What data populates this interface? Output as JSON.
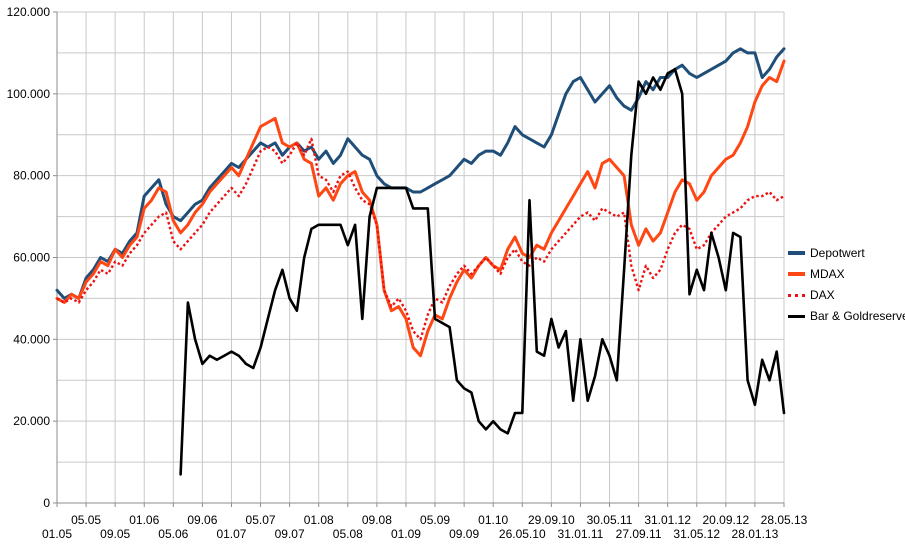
{
  "chart_data": {
    "type": "line",
    "title": "",
    "xlabel": "",
    "ylabel": "",
    "grid": true,
    "legend_position": "right",
    "y_axis": {
      "min": 0,
      "max": 120000,
      "grid_step": 10000,
      "label_step": 20000,
      "tick_labels": [
        "0",
        "20.000",
        "40.000",
        "60.000",
        "80.000",
        "100.000",
        "120.000"
      ]
    },
    "x_axis": {
      "tick_labels": [
        "01.05",
        "05.05",
        "09.05",
        "01.06",
        "05.06",
        "09.06",
        "01.07",
        "05.07",
        "09.07",
        "01.08",
        "05.08",
        "09.08",
        "01.09",
        "05.09",
        "09.09",
        "01.10",
        "26.05.10",
        "29.09.10",
        "31.01.11",
        "30.05.11",
        "27.09.11",
        "31.01.12",
        "31.05.12",
        "20.09.12",
        "28.01.13",
        "28.05.13"
      ],
      "months_per_tick": 4,
      "staggered_rows": true
    },
    "series": [
      {
        "name": "Depotwert",
        "color": "#1F4E79",
        "style": "solid",
        "width": 3,
        "values": [
          52000,
          50000,
          51000,
          50000,
          55000,
          57000,
          60000,
          59000,
          62000,
          61000,
          64000,
          66000,
          75000,
          77000,
          79000,
          73000,
          70000,
          69000,
          71000,
          73000,
          74000,
          77000,
          79000,
          81000,
          83000,
          82000,
          84000,
          86000,
          88000,
          87000,
          88000,
          85000,
          87000,
          88000,
          86000,
          87000,
          84000,
          86000,
          83000,
          85000,
          89000,
          87000,
          85000,
          84000,
          80000,
          78000,
          77000,
          77000,
          77000,
          76000,
          76000,
          77000,
          78000,
          79000,
          80000,
          82000,
          84000,
          83000,
          85000,
          86000,
          86000,
          85000,
          88000,
          92000,
          90000,
          89000,
          88000,
          87000,
          90000,
          95000,
          100000,
          103000,
          104000,
          101000,
          98000,
          100000,
          102000,
          99000,
          97000,
          96000,
          99000,
          103000,
          101000,
          104000,
          104000,
          106000,
          107000,
          105000,
          104000,
          105000,
          106000,
          107000,
          108000,
          110000,
          111000,
          110000,
          110000,
          104000,
          106000,
          109000,
          111000
        ]
      },
      {
        "name": "MDAX",
        "color": "#FF4713",
        "style": "solid",
        "width": 3,
        "values": [
          50000,
          49000,
          51000,
          50000,
          54000,
          56000,
          59000,
          58000,
          62000,
          60000,
          63000,
          65000,
          72000,
          74000,
          77000,
          76000,
          69000,
          66000,
          68000,
          71000,
          73000,
          76000,
          78000,
          80000,
          82000,
          80000,
          84000,
          88000,
          92000,
          93000,
          94000,
          88000,
          87000,
          88000,
          84000,
          83000,
          75000,
          77000,
          74000,
          78000,
          80000,
          81000,
          76000,
          74000,
          68000,
          52000,
          47000,
          48000,
          45000,
          38000,
          36000,
          42000,
          46000,
          45000,
          50000,
          54000,
          57000,
          55000,
          58000,
          60000,
          58000,
          57000,
          62000,
          65000,
          61000,
          60000,
          63000,
          62000,
          66000,
          69000,
          72000,
          75000,
          78000,
          81000,
          77000,
          83000,
          84000,
          82000,
          80000,
          68000,
          63000,
          67000,
          64000,
          66000,
          71000,
          76000,
          79000,
          78000,
          74000,
          76000,
          80000,
          82000,
          84000,
          85000,
          88000,
          92000,
          98000,
          102000,
          104000,
          103000,
          108000
        ]
      },
      {
        "name": "DAX",
        "color": "#EE1111",
        "style": "dotted",
        "width": 2.4,
        "values": [
          50000,
          49000,
          50000,
          49000,
          52000,
          54000,
          57000,
          56000,
          59000,
          58000,
          61000,
          63000,
          66000,
          68000,
          70000,
          71000,
          64000,
          62000,
          64000,
          66000,
          68000,
          71000,
          73000,
          75000,
          77000,
          75000,
          78000,
          82000,
          86000,
          87000,
          86000,
          83000,
          85000,
          88000,
          85000,
          89000,
          80000,
          79000,
          76000,
          80000,
          81000,
          77000,
          74000,
          73000,
          68000,
          52000,
          48000,
          50000,
          47000,
          42000,
          40000,
          46000,
          50000,
          49000,
          53000,
          56000,
          58000,
          56000,
          58000,
          60000,
          58000,
          56000,
          60000,
          62000,
          59000,
          58000,
          60000,
          59000,
          62000,
          64000,
          66000,
          68000,
          70000,
          71000,
          69000,
          72000,
          71000,
          70000,
          71000,
          58000,
          52000,
          58000,
          55000,
          57000,
          62000,
          66000,
          68000,
          67000,
          62000,
          63000,
          66000,
          68000,
          70000,
          71000,
          72000,
          74000,
          75000,
          75000,
          76000,
          74000,
          75000
        ]
      },
      {
        "name": "Bar & Goldreserve",
        "color": "#000000",
        "style": "solid",
        "width": 2.6,
        "values": [
          null,
          null,
          null,
          null,
          null,
          null,
          null,
          null,
          null,
          null,
          null,
          null,
          null,
          null,
          null,
          null,
          null,
          7000,
          49000,
          40000,
          34000,
          36000,
          35000,
          36000,
          37000,
          36000,
          34000,
          33000,
          38000,
          45000,
          52000,
          57000,
          50000,
          47000,
          60000,
          67000,
          68000,
          68000,
          68000,
          68000,
          63000,
          68000,
          45000,
          70000,
          77000,
          77000,
          77000,
          77000,
          77000,
          72000,
          72000,
          72000,
          45000,
          44000,
          43000,
          30000,
          28000,
          27000,
          20000,
          18000,
          20000,
          18000,
          17000,
          22000,
          22000,
          74000,
          37000,
          36000,
          45000,
          38000,
          42000,
          25000,
          40000,
          25000,
          31000,
          40000,
          36000,
          30000,
          57000,
          85000,
          103000,
          100000,
          104000,
          101000,
          105000,
          106000,
          100000,
          51000,
          57000,
          52000,
          66000,
          60000,
          52000,
          66000,
          65000,
          30000,
          24000,
          35000,
          30000,
          37000,
          22000
        ]
      }
    ]
  }
}
